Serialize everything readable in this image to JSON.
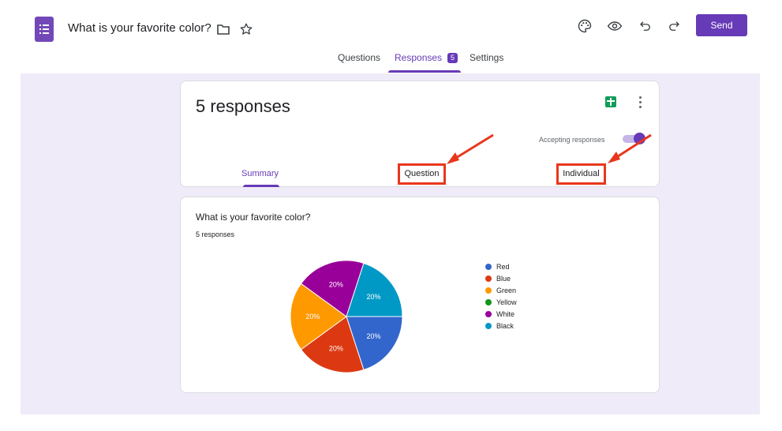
{
  "header": {
    "title": "What is your favorite color?",
    "send_label": "Send"
  },
  "tabs": [
    {
      "label": "Questions",
      "active": false
    },
    {
      "label": "Responses",
      "active": true,
      "badge": "5"
    },
    {
      "label": "Settings",
      "active": false
    }
  ],
  "summary_card": {
    "title": "5 responses",
    "accepting_label": "Accepting responses",
    "accepting_on": true,
    "subtabs": [
      {
        "label": "Summary",
        "active": true
      },
      {
        "label": "Question",
        "highlighted": true
      },
      {
        "label": "Individual",
        "highlighted": true
      }
    ]
  },
  "question_card": {
    "title": "What is your favorite color?",
    "count_label": "5 responses"
  },
  "chart_data": {
    "type": "pie",
    "categories": [
      "Red",
      "Blue",
      "Green",
      "Yellow",
      "White",
      "Black"
    ],
    "values": [
      20,
      20,
      20,
      0,
      20,
      20
    ],
    "slice_labels": [
      "20%",
      "20%",
      "20%",
      "",
      "20%",
      "20%"
    ],
    "colors": [
      "#3366cc",
      "#dc3912",
      "#ff9900",
      "#109618",
      "#990099",
      "#0099c6"
    ],
    "legend": "right"
  },
  "colors": {
    "accent": "#673ab7",
    "annotation": "#e8371c",
    "background": "#efebf9"
  },
  "icons": [
    "forms-logo-icon",
    "folder-icon",
    "star-icon",
    "palette-icon",
    "eye-icon",
    "undo-icon",
    "redo-icon",
    "sheets-icon",
    "more-vert-icon"
  ]
}
